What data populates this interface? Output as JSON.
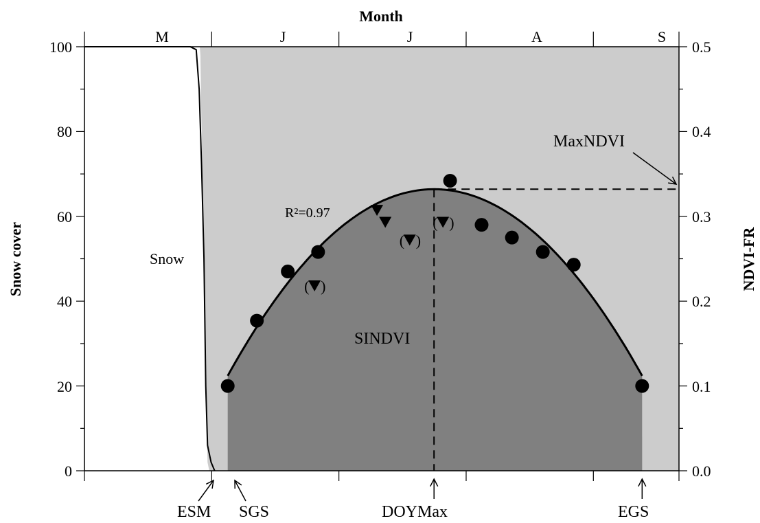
{
  "chart_data": {
    "type": "scatter",
    "title": "",
    "top_axis_label": "Month",
    "months": [
      "M",
      "J",
      "J",
      "A",
      "S"
    ],
    "ylabel_left": "Snow cover",
    "ylabel_right": "NDVI-FR",
    "left_ticks": [
      "0",
      "20",
      "40",
      "60",
      "80",
      "100"
    ],
    "right_ticks": [
      "0.0",
      "0.1",
      "0.2",
      "0.3",
      "0.4",
      "0.5"
    ],
    "ylim_left": [
      0,
      100
    ],
    "ylim_right": [
      0,
      0.5
    ],
    "grid": false,
    "fit_label": "R²=0.97",
    "region_labels": {
      "snow": "Snow",
      "sindvi": "SINDVI"
    },
    "annotations": {
      "max_ndvi": "MaxNDVI",
      "esm": "ESM",
      "sgs": "SGS",
      "doymax": "DOYMax",
      "egs": "EGS"
    },
    "ndvi_points": [
      {
        "x": 0.241,
        "y": 0.1
      },
      {
        "x": 0.29,
        "y": 0.177
      },
      {
        "x": 0.342,
        "y": 0.235
      },
      {
        "x": 0.393,
        "y": 0.258
      },
      {
        "x": 0.615,
        "y": 0.342
      },
      {
        "x": 0.668,
        "y": 0.29
      },
      {
        "x": 0.719,
        "y": 0.275
      },
      {
        "x": 0.771,
        "y": 0.258
      },
      {
        "x": 0.823,
        "y": 0.243
      },
      {
        "x": 0.938,
        "y": 0.1
      }
    ],
    "triangle_points": [
      {
        "x": 0.492,
        "y": 0.307,
        "bracketed": false
      },
      {
        "x": 0.506,
        "y": 0.293,
        "bracketed": false
      },
      {
        "x": 0.387,
        "y": 0.218,
        "bracketed": true
      },
      {
        "x": 0.547,
        "y": 0.272,
        "bracketed": true
      },
      {
        "x": 0.603,
        "y": 0.293,
        "bracketed": true
      }
    ],
    "fit_peak": {
      "x": 0.588,
      "y": 0.332
    },
    "growing_season": {
      "sgs": 0.241,
      "egs": 0.938
    }
  }
}
